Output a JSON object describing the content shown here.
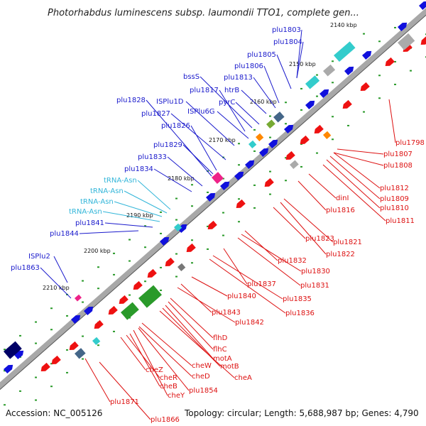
{
  "title": "Photorhabdus luminescens subsp. laumondii TTO1, complete gen...",
  "accession": "Accession: NC_005126",
  "topology": "Topology: circular; Length: 5,688,987 bp; Genes: 4,790",
  "colors": {
    "backbone": "#a8a8a8",
    "forward_label": "#1a1acc",
    "reverse_label": "#dd1111",
    "rna_label": "#33b6d9",
    "tick": "#2a9a2a"
  },
  "ticks": [
    "2140 kbp",
    "2150 kbp",
    "2160 kbp",
    "2170 kbp",
    "2180 kbp",
    "2190 kbp",
    "2200 kbp",
    "2210 kbp"
  ],
  "forward_labels": [
    "plu1803",
    "plu1804",
    "plu1805",
    "plu1806",
    "plu1813",
    "bssS",
    "plu1817",
    "htrB",
    "pyrC",
    "plu1828",
    "ISPlu1D",
    "plu1827",
    "ISPlu6G",
    "plu1826",
    "plu1829",
    "plu1833",
    "plu1834",
    "tRNA-Asn",
    "tRNA-Asn",
    "tRNA-Asn",
    "tRNA-Asn",
    "plu1841",
    "plu1844",
    "ISPlu2",
    "plu1863"
  ],
  "rna_labels": [
    "tRNA-Asn",
    "tRNA-Asn",
    "tRNA-Asn",
    "tRNA-Asn"
  ],
  "reverse_labels": [
    "plu1798",
    "plu1807",
    "plu1808",
    "plu1812",
    "plu1809",
    "plu1810",
    "plu1811",
    "dinI",
    "plu1816",
    "plu1821",
    "plu1822",
    "plu1823",
    "plu1832",
    "plu1830",
    "plu1831",
    "plu1837",
    "plu1835",
    "plu1836",
    "plu1840",
    "plu1843",
    "plu1842",
    "flhD",
    "flhC",
    "motA",
    "motB",
    "cheA",
    "cheW",
    "cheD",
    "cheZ",
    "cheR",
    "cheB",
    "cheY",
    "plu1854",
    "plu1871",
    "plu1866"
  ]
}
